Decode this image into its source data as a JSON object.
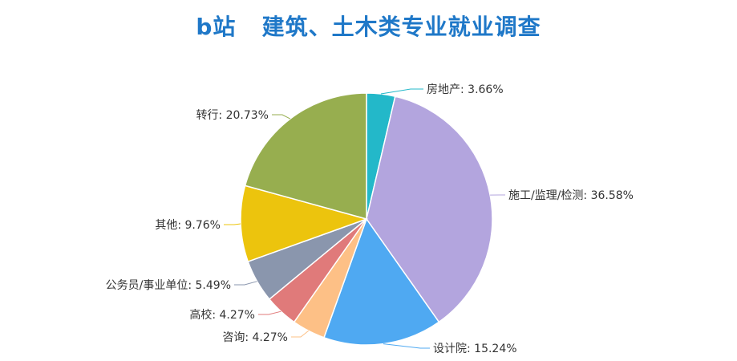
{
  "chart_data": {
    "type": "pie",
    "title": "b站   建筑、土木类专业就业调查",
    "slices": [
      {
        "name": "房地产",
        "value": 3.66,
        "label": "房地产: 3.66%",
        "color": "#23b8c9"
      },
      {
        "name": "施工/监理/检测",
        "value": 36.58,
        "label": "施工/监理/检测: 36.58%",
        "color": "#b3a5de"
      },
      {
        "name": "设计院",
        "value": 15.24,
        "label": "设计院: 15.24%",
        "color": "#4fa9f2"
      },
      {
        "name": "咨询",
        "value": 4.27,
        "label": "咨询: 4.27%",
        "color": "#fdc086"
      },
      {
        "name": "高校",
        "value": 4.27,
        "label": "高校: 4.27%",
        "color": "#e07a7a"
      },
      {
        "name": "公务员/事业单位",
        "value": 5.49,
        "label": "公务员/事业单位: 5.49%",
        "color": "#8a96ad"
      },
      {
        "name": "其他",
        "value": 9.76,
        "label": "其他: 9.76%",
        "color": "#ecc40d"
      },
      {
        "name": "转行",
        "value": 20.73,
        "label": "转行: 20.73%",
        "color": "#97ae4f"
      }
    ],
    "start_angle": "12 o'clock",
    "direction": "clockwise",
    "legend": "none"
  }
}
